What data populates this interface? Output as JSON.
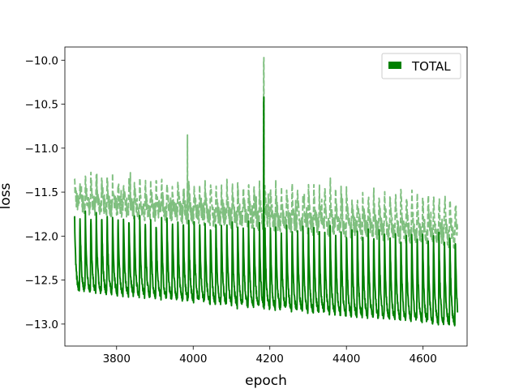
{
  "chart_data": {
    "type": "line",
    "title": "",
    "xlabel": "epoch",
    "ylabel": "loss",
    "xlim": [
      3665,
      4715
    ],
    "ylim": [
      -13.25,
      -9.85
    ],
    "xticks": [
      3800,
      4000,
      4200,
      4400,
      4600
    ],
    "yticks": [
      -13.0,
      -12.5,
      -12.0,
      -11.5,
      -11.0,
      -10.5,
      -10.0
    ],
    "xtick_labels": [
      "3800",
      "4000",
      "4200",
      "4400",
      "4600"
    ],
    "ytick_labels": [
      "−13.0",
      "−12.5",
      "−12.0",
      "−11.5",
      "−11.0",
      "−10.5",
      "−10.0"
    ],
    "grid": false,
    "legend": {
      "placement": "top-right",
      "entries": [
        "TOTAL"
      ]
    },
    "colors": {
      "solid": "#008000",
      "dashed": "#7fbf7f"
    },
    "x_range": [
      3690,
      4690
    ],
    "period_epochs": 14.2,
    "series": [
      {
        "name": "TOTAL",
        "style": "solid",
        "trend_start": {
          "x": 3690,
          "peak": -11.72,
          "trough": -12.62
        },
        "trend_end": {
          "x": 4690,
          "peak": -11.97,
          "trough": -13.02
        },
        "spike": {
          "x": 4184,
          "value": -10.47
        }
      },
      {
        "name": "",
        "style": "dashed",
        "trend_start": {
          "x": 3690,
          "peak": -11.35,
          "trough": -11.65
        },
        "trend_end": {
          "x": 4690,
          "peak": -11.55,
          "trough": -12.05
        },
        "spike": {
          "x": 4184,
          "value": -10.02
        },
        "secondary_spike": {
          "x": 3985,
          "value": -10.85
        }
      }
    ]
  }
}
